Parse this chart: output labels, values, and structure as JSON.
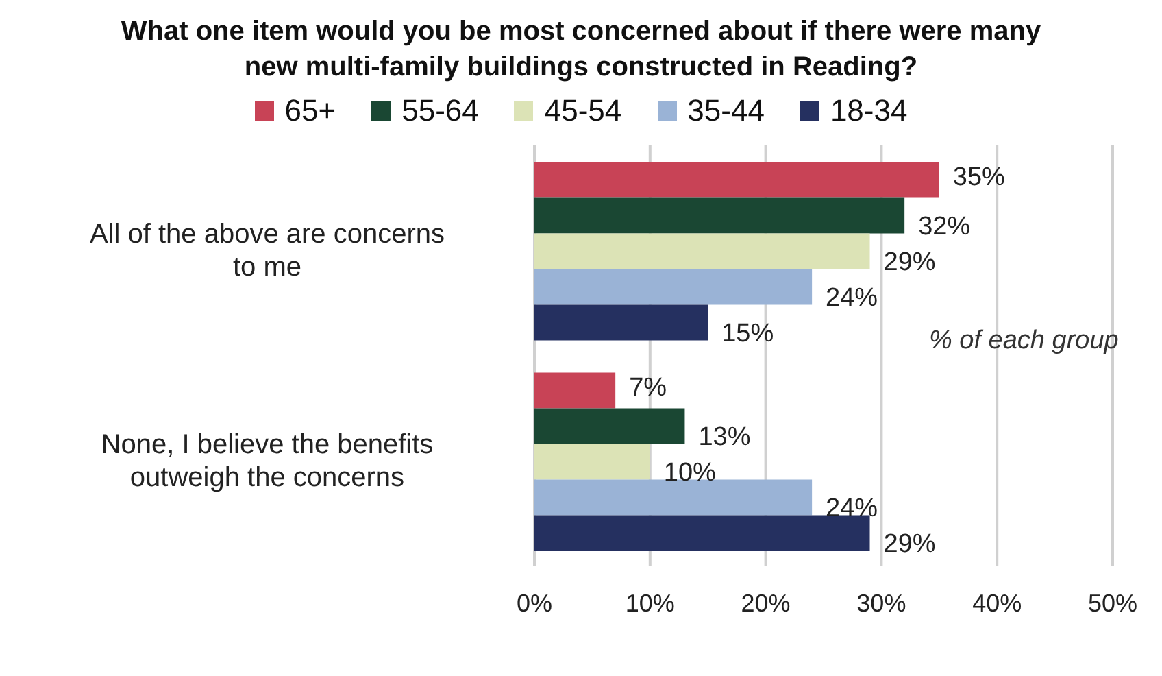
{
  "chart_data": {
    "type": "bar",
    "orientation": "horizontal",
    "title": "What one item would you be most concerned about if there were many new multi-family buildings constructed in Reading?",
    "categories": [
      "All of the above are concerns to me",
      "None, I believe the benefits outweigh the concerns"
    ],
    "series": [
      {
        "name": "65+",
        "color": "#c84356",
        "values": [
          35,
          7
        ],
        "value_labels": [
          "35%",
          "7%"
        ]
      },
      {
        "name": "55-64",
        "color": "#1a4733",
        "values": [
          32,
          13
        ],
        "value_labels": [
          "32%",
          "13%"
        ]
      },
      {
        "name": "45-54",
        "color": "#dce3b6",
        "values": [
          29,
          10
        ],
        "value_labels": [
          "29%",
          "10%"
        ]
      },
      {
        "name": "35-44",
        "color": "#9ab3d6",
        "values": [
          24,
          24
        ],
        "value_labels": [
          "24%",
          "24%"
        ]
      },
      {
        "name": "18-34",
        "color": "#253060",
        "values": [
          15,
          29
        ],
        "value_labels": [
          "15%",
          "29%"
        ]
      }
    ],
    "xlim": [
      0,
      50
    ],
    "xticks": [
      {
        "value": 0,
        "label": "0%"
      },
      {
        "value": 10,
        "label": "10%"
      },
      {
        "value": 20,
        "label": "20%"
      },
      {
        "value": 30,
        "label": "30%"
      },
      {
        "value": 40,
        "label": "40%"
      },
      {
        "value": 50,
        "label": "50%"
      }
    ],
    "grid": "x",
    "legend": "top",
    "annotations": [
      "% of each group"
    ]
  }
}
